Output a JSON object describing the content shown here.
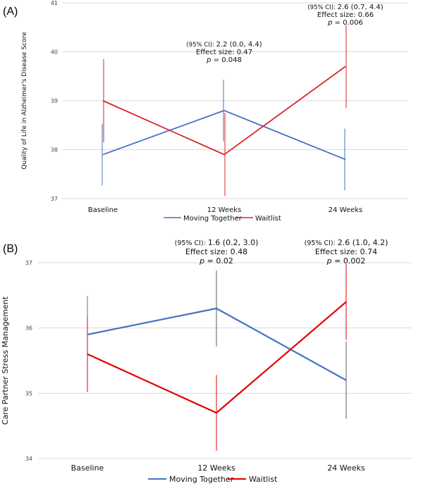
{
  "chart_data": [
    {
      "type": "line",
      "panel_label": "(A)",
      "ylabel": "Quality of Life in Alzheimer's Disease Score",
      "xlabel": "",
      "categories": [
        "Baseline",
        "12 Weeks",
        "24 Weeks"
      ],
      "ylim": [
        37,
        41
      ],
      "yticks": [
        "37",
        "38",
        "39",
        "40",
        "41"
      ],
      "grid": true,
      "legend_position": "bottom",
      "series": [
        {
          "name": "Moving Together",
          "color": "#4472C4",
          "values": [
            37.9,
            38.8,
            37.8
          ],
          "ci_low": [
            37.27,
            38.17,
            37.17
          ],
          "ci_high": [
            38.53,
            39.43,
            38.43
          ]
        },
        {
          "name": "Waitlist",
          "color": "#D9262A",
          "values": [
            39.0,
            37.9,
            39.7
          ],
          "ci_low": [
            38.15,
            37.05,
            38.85
          ],
          "ci_high": [
            39.85,
            38.75,
            40.55
          ]
        }
      ],
      "annotations": [
        {
          "category_index": 1,
          "ci_prefix": "(95% CI):",
          "ci_value": "2.2 (0.0, 4.4)",
          "effect_prefix": "Effect size:",
          "effect_value": "0.47",
          "p_prefix": "p",
          "p_value": "= 0.048"
        },
        {
          "category_index": 2,
          "ci_prefix": "(95% CI):",
          "ci_value": "2.6 (0.7, 4.4)",
          "effect_prefix": "Effect size:",
          "effect_value": "0.66",
          "p_prefix": "p",
          "p_value": "= 0.006"
        }
      ]
    },
    {
      "type": "line",
      "panel_label": "(B)",
      "ylabel": "Care Partner Stress Management",
      "xlabel": "",
      "categories": [
        "Baseline",
        "12 Weeks",
        "24 Weeks"
      ],
      "ylim": [
        34,
        37
      ],
      "yticks": [
        "34",
        "35",
        "36",
        "37"
      ],
      "grid": true,
      "legend_position": "bottom",
      "series": [
        {
          "name": "Moving Together",
          "color": "#4472C4",
          "values": [
            35.9,
            36.3,
            35.2
          ],
          "ci_low": [
            35.31,
            35.72,
            34.61
          ],
          "ci_high": [
            36.49,
            36.88,
            35.79
          ]
        },
        {
          "name": "Waitlist",
          "color": "#E00000",
          "values": [
            35.6,
            34.7,
            36.4
          ],
          "ci_low": [
            35.02,
            34.12,
            35.82
          ],
          "ci_high": [
            36.18,
            35.28,
            36.98
          ]
        }
      ],
      "annotations": [
        {
          "category_index": 1,
          "ci_prefix": "(95% CI):",
          "ci_value": "1.6 (0.2, 3.0)",
          "effect_prefix": "Effect size:",
          "effect_value": "0.48",
          "p_prefix": "p",
          "p_value": "= 0.02"
        },
        {
          "category_index": 2,
          "ci_prefix": "(95% CI):",
          "ci_value": "2.6 (1.0, 4.2)",
          "effect_prefix": "Effect size:",
          "effect_value": "0.74",
          "p_prefix": "p",
          "p_value": "= 0.002"
        }
      ]
    }
  ]
}
